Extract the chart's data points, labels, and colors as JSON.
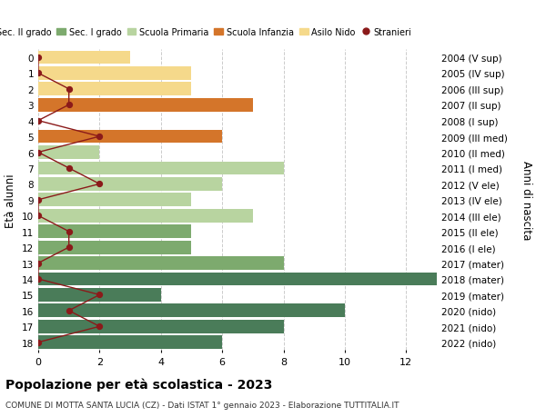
{
  "ages": [
    18,
    17,
    16,
    15,
    14,
    13,
    12,
    11,
    10,
    9,
    8,
    7,
    6,
    5,
    4,
    3,
    2,
    1,
    0
  ],
  "right_labels": [
    "2004 (V sup)",
    "2005 (IV sup)",
    "2006 (III sup)",
    "2007 (II sup)",
    "2008 (I sup)",
    "2009 (III med)",
    "2010 (II med)",
    "2011 (I med)",
    "2012 (V ele)",
    "2013 (IV ele)",
    "2014 (III ele)",
    "2015 (II ele)",
    "2016 (I ele)",
    "2017 (mater)",
    "2018 (mater)",
    "2019 (mater)",
    "2020 (nido)",
    "2021 (nido)",
    "2022 (nido)"
  ],
  "bar_values": [
    6,
    8,
    10,
    4,
    13,
    8,
    5,
    5,
    7,
    5,
    6,
    8,
    2,
    6,
    0,
    7,
    5,
    5,
    3
  ],
  "bar_colors": [
    "#4a7c59",
    "#4a7c59",
    "#4a7c59",
    "#4a7c59",
    "#4a7c59",
    "#7daa6e",
    "#7daa6e",
    "#7daa6e",
    "#b8d4a0",
    "#b8d4a0",
    "#b8d4a0",
    "#b8d4a0",
    "#b8d4a0",
    "#d4752a",
    "#d4752a",
    "#d4752a",
    "#f5d98b",
    "#f5d98b",
    "#f5d98b"
  ],
  "stranieri_values": [
    0,
    2,
    1,
    2,
    0,
    0,
    1,
    1,
    0,
    0,
    2,
    1,
    0,
    2,
    0,
    1,
    1,
    0,
    0
  ],
  "stranieri_color": "#8b1a1a",
  "legend_items": [
    {
      "label": "Sec. II grado",
      "color": "#4a7c59"
    },
    {
      "label": "Sec. I grado",
      "color": "#7daa6e"
    },
    {
      "label": "Scuola Primaria",
      "color": "#b8d4a0"
    },
    {
      "label": "Scuola Infanzia",
      "color": "#d4752a"
    },
    {
      "label": "Asilo Nido",
      "color": "#f5d98b"
    },
    {
      "label": "Stranieri",
      "color": "#8b1a1a"
    }
  ],
  "ylabel": "Età alunni",
  "right_ylabel": "Anni di nascita",
  "title": "Popolazione per età scolastica - 2023",
  "subtitle": "COMUNE DI MOTTA SANTA LUCIA (CZ) - Dati ISTAT 1° gennaio 2023 - Elaborazione TUTTITALIA.IT",
  "xlim": [
    0,
    13
  ],
  "xticks": [
    0,
    2,
    4,
    6,
    8,
    10,
    12
  ],
  "background_color": "#ffffff",
  "grid_color": "#cccccc"
}
